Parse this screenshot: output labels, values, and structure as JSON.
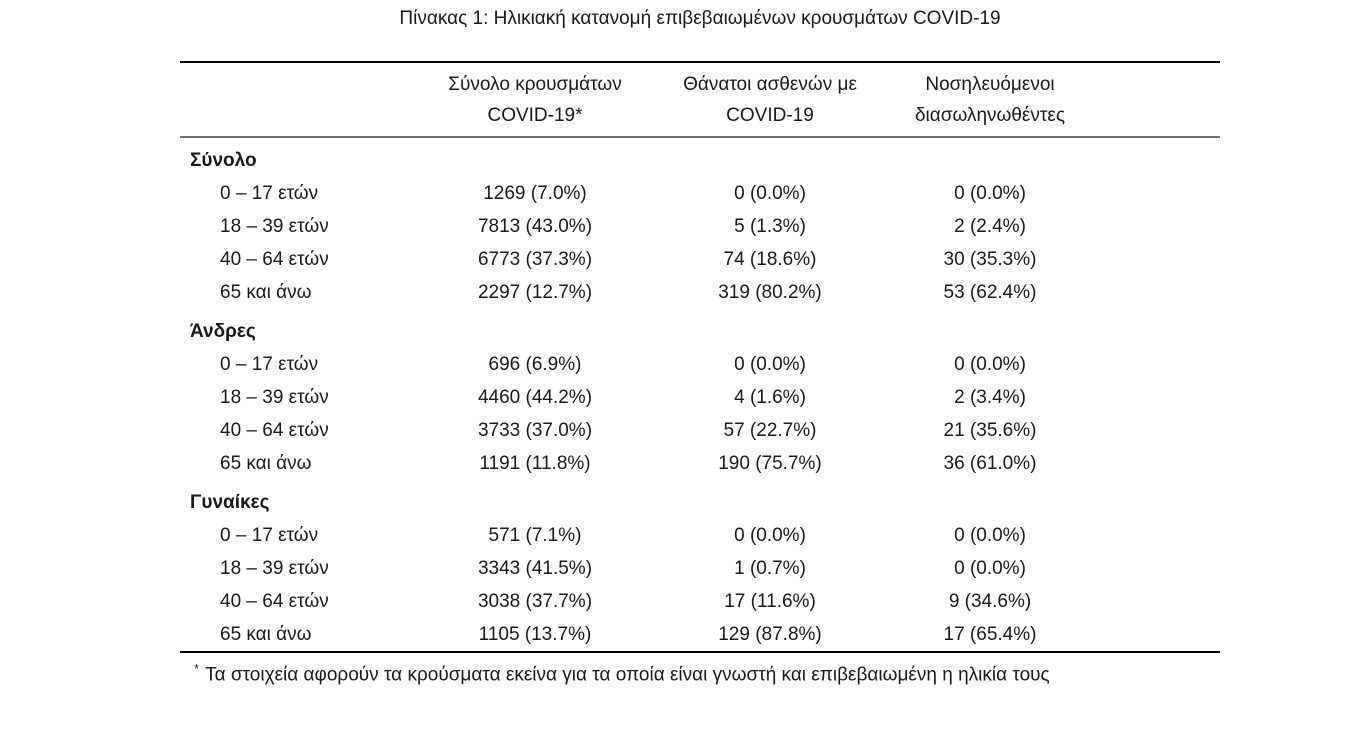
{
  "title": "Πίνακας 1: Ηλικιακή κατανομή επιβεβαιωμένων κρουσμάτων COVID-19",
  "table": {
    "col_headers": [
      {
        "line1": "Σύνολο κρουσμάτων",
        "line2": "COVID-19*"
      },
      {
        "line1": "Θάνατοι ασθενών με",
        "line2": "COVID-19"
      },
      {
        "line1": "Νοσηλευόμενοι",
        "line2": "διασωληνωθέντες"
      }
    ],
    "sections": [
      {
        "label": "Σύνολο",
        "rows": [
          {
            "age": "0 – 17 ετών",
            "cases": "1269 (7.0%)",
            "deaths": "0 (0.0%)",
            "intubated": "0 (0.0%)"
          },
          {
            "age": "18 – 39 ετών",
            "cases": "7813 (43.0%)",
            "deaths": "5 (1.3%)",
            "intubated": "2 (2.4%)"
          },
          {
            "age": "40 – 64 ετών",
            "cases": "6773 (37.3%)",
            "deaths": "74 (18.6%)",
            "intubated": "30 (35.3%)"
          },
          {
            "age": "65 και άνω",
            "cases": "2297 (12.7%)",
            "deaths": "319 (80.2%)",
            "intubated": "53 (62.4%)"
          }
        ]
      },
      {
        "label": "Άνδρες",
        "rows": [
          {
            "age": "0 – 17 ετών",
            "cases": "696 (6.9%)",
            "deaths": "0 (0.0%)",
            "intubated": "0 (0.0%)"
          },
          {
            "age": "18 – 39 ετών",
            "cases": "4460 (44.2%)",
            "deaths": "4 (1.6%)",
            "intubated": "2 (3.4%)"
          },
          {
            "age": "40 – 64 ετών",
            "cases": "3733 (37.0%)",
            "deaths": "57 (22.7%)",
            "intubated": "21 (35.6%)"
          },
          {
            "age": "65 και άνω",
            "cases": "1191 (11.8%)",
            "deaths": "190 (75.7%)",
            "intubated": "36 (61.0%)"
          }
        ]
      },
      {
        "label": "Γυναίκες",
        "rows": [
          {
            "age": "0 – 17 ετών",
            "cases": "571 (7.1%)",
            "deaths": "0 (0.0%)",
            "intubated": "0 (0.0%)"
          },
          {
            "age": "18 – 39 ετών",
            "cases": "3343 (41.5%)",
            "deaths": "1 (0.7%)",
            "intubated": "0 (0.0%)"
          },
          {
            "age": "40 – 64 ετών",
            "cases": "3038 (37.7%)",
            "deaths": "17 (11.6%)",
            "intubated": "9 (34.6%)"
          },
          {
            "age": "65 και άνω",
            "cases": "1105 (13.7%)",
            "deaths": "129 (87.8%)",
            "intubated": "17 (65.4%)"
          }
        ]
      }
    ],
    "footnote": {
      "marker": "*",
      "text": "Τα στοιχεία αφορούν τα κρούσματα εκείνα για τα οποία είναι γνωστή και επιβεβαιωμένη η ηλικία τους"
    }
  },
  "colors": {
    "background": "#ffffff",
    "text": "#1a1a1a",
    "rule_dark": "#000000",
    "rule_mid": "#6e6e6e"
  }
}
